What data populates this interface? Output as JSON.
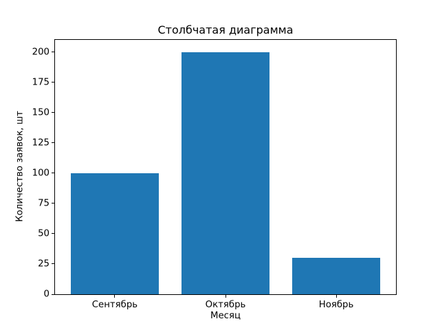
{
  "figure": {
    "background_color": "#ffffff",
    "text_color": "#000000"
  },
  "chart_data": {
    "type": "bar",
    "title": "Столбчатая диаграмма",
    "xlabel": "Месяц",
    "ylabel": "Количество заявок, шт",
    "categories": [
      "Сентябрь",
      "Октябрь",
      "Ноябрь"
    ],
    "values": [
      100,
      200,
      30
    ],
    "bar_color": "#1f77b4",
    "bar_width_fraction": 0.8,
    "ylim": [
      0,
      210
    ],
    "yticks": [
      0,
      25,
      50,
      75,
      100,
      125,
      150,
      175,
      200
    ],
    "grid": false,
    "legend": "none",
    "frame": "full-box"
  }
}
